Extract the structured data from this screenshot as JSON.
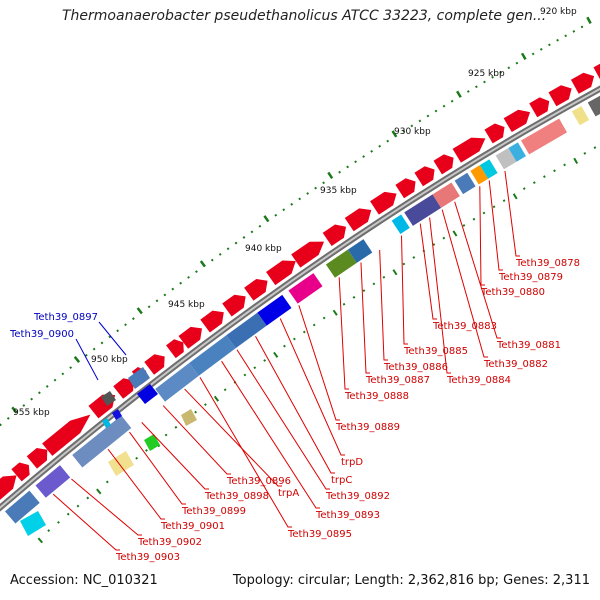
{
  "title": "Thermoanaerobacter pseudethanolicus ATCC 33223, complete gen...",
  "footer": {
    "accession": "Accession: NC_010321",
    "summary": "Topology: circular; Length: 2,362,816 bp; Genes: 2,311"
  },
  "scale_labels": [
    "920 kbp",
    "925 kbp",
    "930 kbp",
    "935 kbp",
    "940 kbp",
    "945 kbp",
    "950 kbp",
    "955 kbp"
  ],
  "colors": {
    "forward_gene": "#e8001a",
    "label_red": "#d00000",
    "label_blue": "#0000c0",
    "backbone": "#808080",
    "tick": "#1a7a1a"
  },
  "red_labels": [
    "Teth39_0878",
    "Teth39_0879",
    "Teth39_0880",
    "Teth39_0881",
    "Teth39_0882",
    "Teth39_0883",
    "Teth39_0884",
    "Teth39_0885",
    "Teth39_0886",
    "Teth39_0887",
    "Teth39_0888",
    "Teth39_0889",
    "trpD",
    "trpC",
    "Teth39_0892",
    "Teth39_0893",
    "Teth39_0895",
    "trpA",
    "Teth39_0896",
    "Teth39_0898",
    "Teth39_0899",
    "Teth39_0901",
    "Teth39_0902",
    "Teth39_0903"
  ],
  "blue_labels": [
    "Teth39_0897",
    "Teth39_0900"
  ]
}
